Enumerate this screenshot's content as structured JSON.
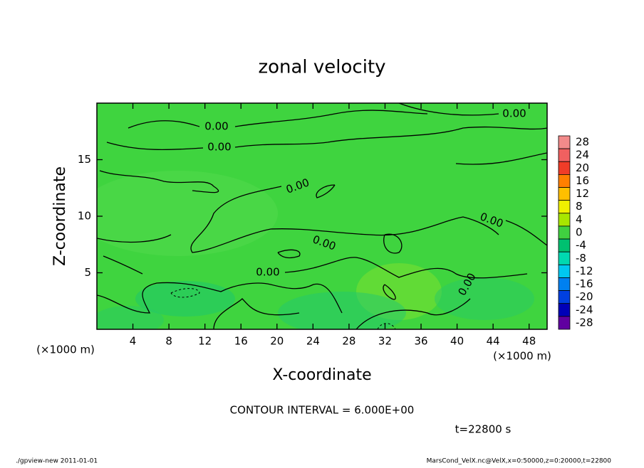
{
  "chart_data": {
    "type": "contour",
    "title": "zonal velocity",
    "xlabel": "X-coordinate",
    "ylabel": "Z-coordinate",
    "x_unit": "(×1000 m)",
    "xlim": [
      0,
      50
    ],
    "xticks": [
      4,
      8,
      12,
      16,
      20,
      24,
      28,
      32,
      36,
      40,
      44,
      48
    ],
    "ylim": [
      0,
      20
    ],
    "yticks": [
      5,
      10,
      15
    ],
    "contour_label": "0.00",
    "colorbar": {
      "levels": [
        28,
        24,
        20,
        16,
        12,
        8,
        4,
        0,
        -4,
        -8,
        -12,
        -16,
        -20,
        -24,
        -28
      ],
      "colors": [
        "#f28a8a",
        "#f06060",
        "#f03c28",
        "#ff7f00",
        "#ffbf00",
        "#f0f000",
        "#a8e600",
        "#40d040",
        "#00c070",
        "#00d8b0",
        "#00c8f0",
        "#0080f0",
        "#0040e0",
        "#0000b8",
        "#6000a0"
      ]
    },
    "contour_interval": "CONTOUR INTERVAL = 6.000E+00",
    "time": "t=22800 s",
    "footer_left": "./gpview-new  2011-01-01",
    "footer_right": "MarsCond_VelX.nc@VelX,x=0:50000,z=0:20000,t=22800"
  }
}
